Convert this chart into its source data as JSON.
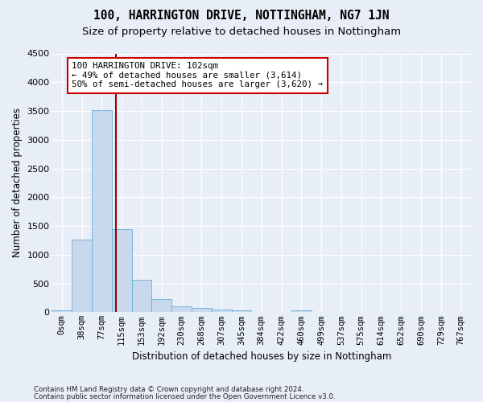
{
  "title": "100, HARRINGTON DRIVE, NOTTINGHAM, NG7 1JN",
  "subtitle": "Size of property relative to detached houses in Nottingham",
  "xlabel": "Distribution of detached houses by size in Nottingham",
  "ylabel": "Number of detached properties",
  "footer_line1": "Contains HM Land Registry data © Crown copyright and database right 2024.",
  "footer_line2": "Contains public sector information licensed under the Open Government Licence v3.0.",
  "annotation_line1": "100 HARRINGTON DRIVE: 102sqm",
  "annotation_line2": "← 49% of detached houses are smaller (3,614)",
  "annotation_line3": "50% of semi-detached houses are larger (3,620) →",
  "bar_color": "#c8d9ee",
  "bar_edge_color": "#6aaed6",
  "vline_color": "#990000",
  "categories": [
    "0sqm",
    "38sqm",
    "77sqm",
    "115sqm",
    "153sqm",
    "192sqm",
    "230sqm",
    "268sqm",
    "307sqm",
    "345sqm",
    "384sqm",
    "422sqm",
    "460sqm",
    "499sqm",
    "537sqm",
    "575sqm",
    "614sqm",
    "652sqm",
    "690sqm",
    "729sqm",
    "767sqm"
  ],
  "values": [
    30,
    1270,
    3520,
    1450,
    560,
    230,
    110,
    75,
    50,
    30,
    0,
    0,
    40,
    0,
    0,
    0,
    0,
    0,
    0,
    0,
    0
  ],
  "vline_bin_index": 2.7,
  "ylim": [
    0,
    4500
  ],
  "yticks": [
    0,
    500,
    1000,
    1500,
    2000,
    2500,
    3000,
    3500,
    4000,
    4500
  ],
  "background_color": "#e8eef7",
  "grid_color": "#ffffff",
  "title_fontsize": 10.5,
  "subtitle_fontsize": 9.5,
  "xlabel_fontsize": 8.5,
  "ylabel_fontsize": 8.5,
  "annotation_fontsize": 7.8,
  "tick_fontsize": 7.5,
  "ytick_fontsize": 8
}
